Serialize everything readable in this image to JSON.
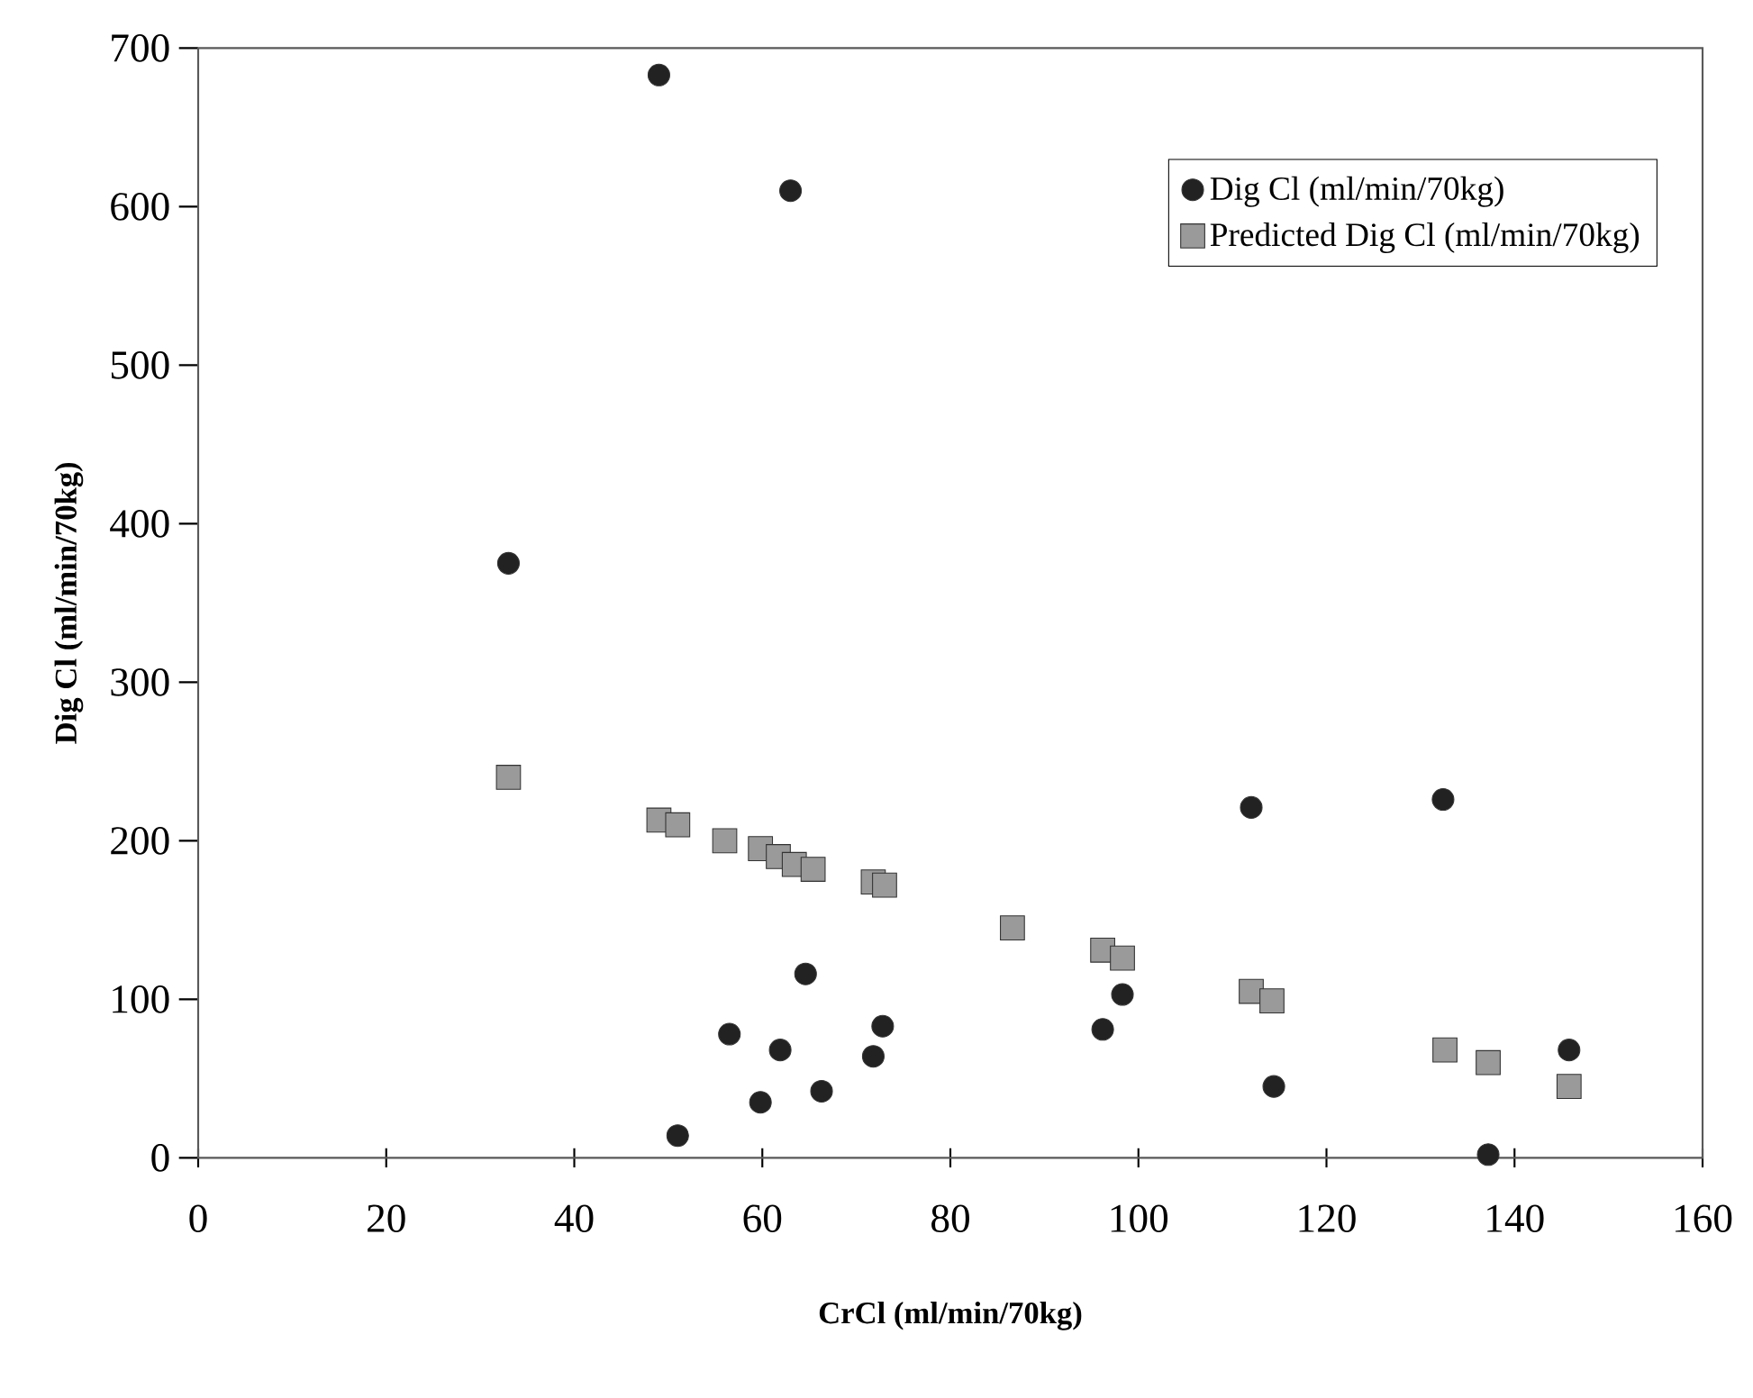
{
  "chart_data": {
    "type": "scatter",
    "xlabel": "CrCl (ml/min/70kg)",
    "ylabel": "Dig Cl (ml/min/70kg)",
    "xlim": [
      0,
      160
    ],
    "ylim": [
      0,
      700
    ],
    "xticks": [
      0,
      20,
      40,
      60,
      80,
      100,
      120,
      140,
      160
    ],
    "yticks": [
      0,
      100,
      200,
      300,
      400,
      500,
      600,
      700
    ],
    "legend": "top right",
    "grid": false,
    "series": [
      {
        "name": "Dig Cl (ml/min/70kg)",
        "color": "#222222",
        "marker": "circle",
        "x": [
          33,
          49,
          51,
          56.5,
          59.8,
          61.9,
          63,
          64.6,
          66.3,
          71.8,
          72.8,
          96.2,
          98.3,
          112,
          114.4,
          132.4,
          137.2,
          145.8
        ],
        "values": [
          375,
          683,
          14,
          78,
          35,
          68,
          610,
          116,
          42,
          64,
          83,
          81,
          103,
          221,
          45,
          226,
          2,
          68
        ]
      },
      {
        "name": "Predicted Dig Cl (ml/min/70kg)",
        "color": "#9a9a9a",
        "marker": "square",
        "x": [
          33,
          49,
          51,
          56,
          59.8,
          61.7,
          63.4,
          65.4,
          71.8,
          73,
          86.6,
          96.2,
          98.3,
          112,
          114.2,
          132.6,
          137.2,
          145.8
        ],
        "values": [
          240,
          213,
          210,
          200,
          195,
          190,
          185,
          182,
          174,
          172,
          145,
          131,
          126,
          105,
          99,
          68,
          60,
          45
        ]
      }
    ]
  }
}
